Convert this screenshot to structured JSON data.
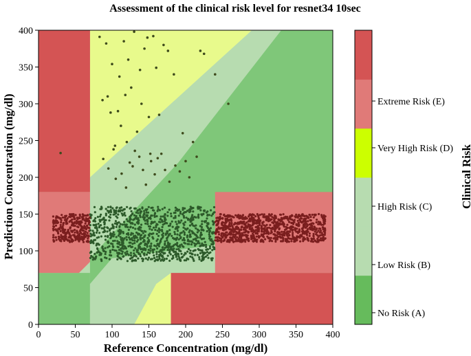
{
  "chart_data": {
    "type": "scatter",
    "title": "Assessment of the clinical risk level for resnet34 10sec",
    "xlabel": "Reference Concentration (mg/dl)",
    "ylabel": "Prediction Concentration (mg/dl)",
    "xlim": [
      0,
      400
    ],
    "ylim": [
      0,
      400
    ],
    "x_ticks": [
      0,
      50,
      100,
      150,
      200,
      250,
      300,
      350,
      400
    ],
    "y_ticks": [
      0,
      50,
      100,
      150,
      200,
      250,
      300,
      350,
      400
    ],
    "colorbar": {
      "label": "Clinical Risk",
      "levels": [
        {
          "label": "No Risk (A)",
          "color": "#66bb5c"
        },
        {
          "label": "Low Risk (B)",
          "color": "#b7dcb0"
        },
        {
          "label": "High Risk (C)",
          "color": "#ccff00"
        },
        {
          "label": "Very High Risk (D)",
          "color": "#e07a78"
        },
        {
          "label": "Extreme Risk (E)",
          "color": "#d45454"
        }
      ]
    },
    "zone_colors": {
      "A": "#7fc779",
      "B": "#b7dcb0",
      "C": "#e8fa8c",
      "D": "#e07a78",
      "E": "#d45454"
    },
    "series": [
      {
        "x": [
          30,
          83,
          87,
          92,
          94,
          98,
          100,
          104,
          108,
          110,
          112,
          116,
          118,
          120,
          122,
          126,
          130,
          134,
          138,
          140,
          144,
          148,
          150,
          152,
          156,
          160,
          164,
          170,
          176,
          184,
          196,
          210,
          215,
          220,
          225,
          240,
          258,
          88,
          95,
          102,
          113,
          128,
          137,
          142,
          153,
          158,
          167,
          172,
          105,
          119,
          124,
          131,
          146,
          162,
          178,
          186,
          192,
          200,
          205
        ],
        "y": [
          233,
          391,
          305,
          382,
          310,
          288,
          354,
          243,
          290,
          337,
          270,
          385,
          312,
          248,
          360,
          322,
          398,
          262,
          346,
          300,
          375,
          390,
          282,
          232,
          392,
          349,
          285,
          380,
          372,
          340,
          260,
          248,
          228,
          372,
          368,
          340,
          300,
          225,
          212,
          238,
          205,
          215,
          228,
          210,
          222,
          204,
          232,
          210,
          198,
          186,
          220,
          236,
          190,
          226,
          194,
          216,
          208,
          222,
          200
        ]
      }
    ]
  }
}
